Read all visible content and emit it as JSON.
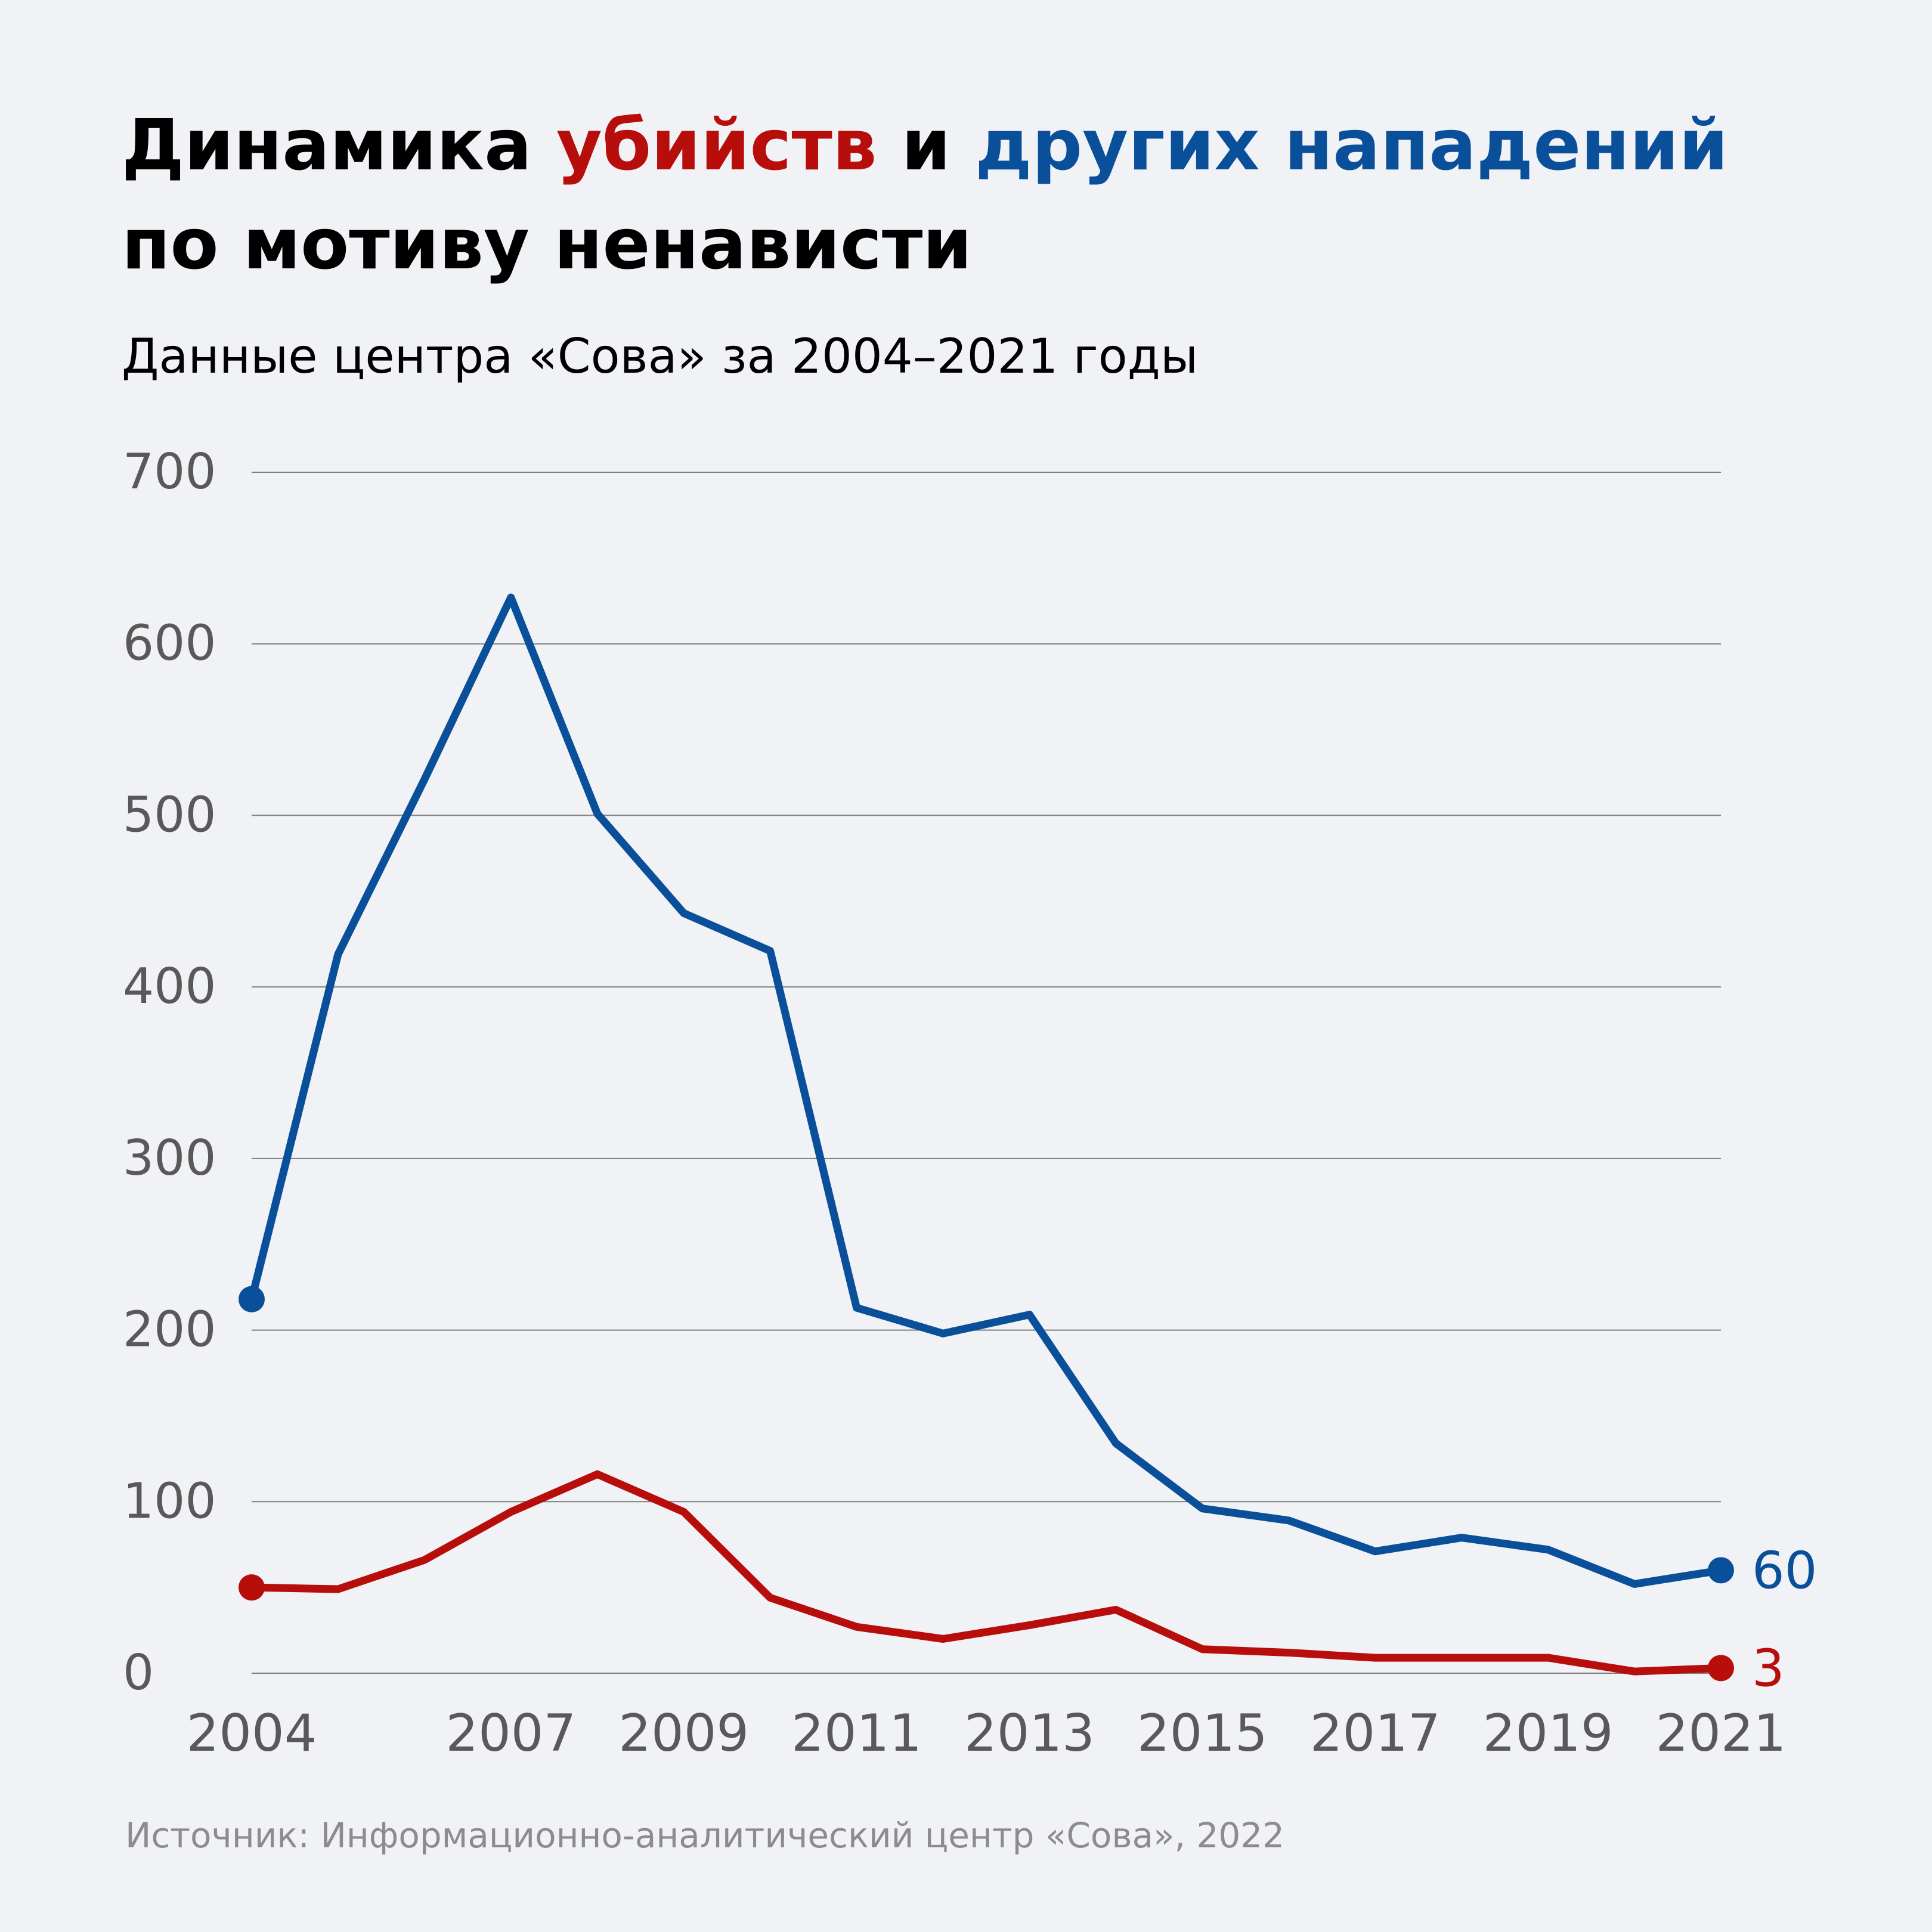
{
  "title": {
    "part1": "Динамика ",
    "part2": "убийств",
    "part3": " и ",
    "part4": "других нападений",
    "line2": "по мотиву ненависти"
  },
  "subtitle": "Данные центра «Сова» за 2004–2021 годы",
  "source": "Источник: Информационно-аналитический центр «Сова», 2022",
  "colors": {
    "killings": "#b70e0c",
    "attacks": "#0a4f99",
    "gridline": "#7f7f7f",
    "tick_text": "#595959",
    "background": "#f0f2f5"
  },
  "chart_data": {
    "type": "line",
    "title": "Динамика убийств и других нападений по мотиву ненависти",
    "xlabel": "",
    "ylabel": "",
    "x": [
      2004,
      2005,
      2006,
      2007,
      2008,
      2009,
      2010,
      2011,
      2012,
      2013,
      2014,
      2015,
      2016,
      2017,
      2018,
      2019,
      2020,
      2021
    ],
    "x_tick_labels": [
      "2004",
      "2007",
      "2009",
      "2011",
      "2013",
      "2015",
      "2017",
      "2019",
      "2021"
    ],
    "x_tick_values": [
      2004,
      2007,
      2009,
      2011,
      2013,
      2015,
      2017,
      2019,
      2021
    ],
    "ylim": [
      0,
      700
    ],
    "y_ticks": [
      0,
      100,
      200,
      300,
      400,
      500,
      600,
      700
    ],
    "grid": true,
    "series": [
      {
        "name": "других нападений",
        "color": "#0a4f99",
        "values": [
          218,
          419,
          521,
          627,
          501,
          443,
          421,
          213,
          198,
          209,
          134,
          96,
          89,
          71,
          79,
          72,
          52,
          60
        ],
        "end_label": "60"
      },
      {
        "name": "убийств",
        "color": "#b70e0c",
        "values": [
          50,
          49,
          66,
          94,
          116,
          94,
          44,
          27,
          20,
          28,
          37,
          14,
          12,
          9,
          9,
          9,
          1,
          3
        ],
        "end_label": "3"
      }
    ]
  }
}
